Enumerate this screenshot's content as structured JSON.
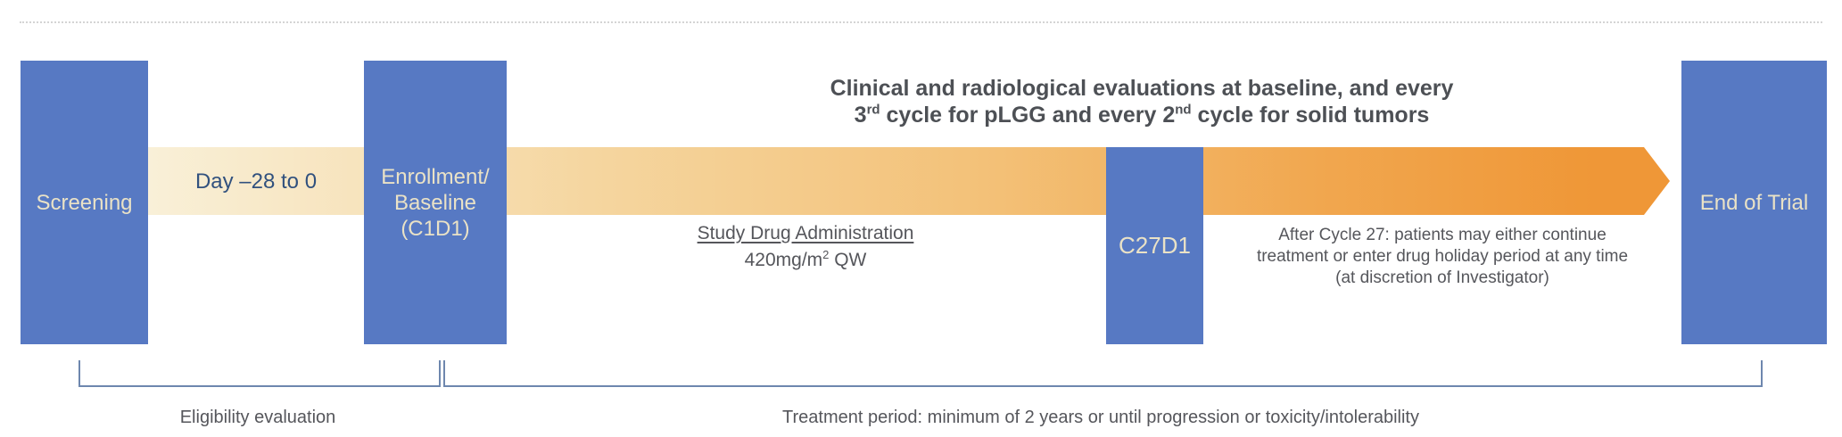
{
  "diagram": {
    "heading": {
      "line1": "Clinical and radiological evaluations at baseline, and every",
      "line2_a": "3",
      "line2_a_sup": "rd",
      "line2_b": " cycle for pLGG and every 2",
      "line2_b_sup": "nd",
      "line2_c": " cycle for solid tumors"
    },
    "boxes": {
      "screening": {
        "label": "Screening"
      },
      "enrollment": {
        "line1": "Enrollment/",
        "line2": "Baseline",
        "line3": "(C1D1)"
      },
      "c27d1": {
        "label": "C27D1"
      },
      "end_of_trial": {
        "label": "End of Trial"
      }
    },
    "band": {
      "day_range_label": "Day –28 to 0"
    },
    "study_drug": {
      "title": "Study Drug Administration",
      "dose_prefix": "420mg/m",
      "dose_sup": "2",
      "dose_suffix": " QW"
    },
    "after_cycle": {
      "line1": "After Cycle 27: patients may either continue",
      "line2": "treatment or enter drug holiday period at any time",
      "line3": "(at discretion of Investigator)"
    },
    "brackets": {
      "eligibility_label": "Eligibility evaluation",
      "treatment_label": "Treatment period: minimum of 2 years or until progression or toxicity/intolerability"
    }
  },
  "colors": {
    "box_blue": "#5779C3",
    "box_label_cream": "#EAE2C6",
    "arrow_orange": "#EF9737",
    "gradient_start": "#F9F0D8",
    "heading_gray": "#4D5055",
    "body_gray": "#55565B",
    "day_navy": "#31517E",
    "bracket_blue": "#6E87AE",
    "dotted_line_gray": "#D4D4D4"
  }
}
